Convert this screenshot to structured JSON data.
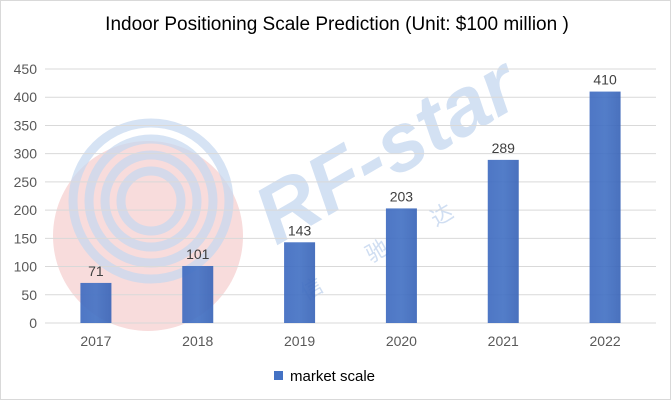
{
  "chart_data": {
    "type": "bar",
    "title": "Indoor Positioning Scale Prediction (Unit: $100 million )",
    "categories": [
      "2017",
      "2018",
      "2019",
      "2020",
      "2021",
      "2022"
    ],
    "series": [
      {
        "name": "market scale",
        "values": [
          71,
          101,
          143,
          203,
          289,
          410
        ]
      }
    ],
    "data_labels": [
      "71",
      "101",
      "143",
      "203",
      "289",
      "410"
    ],
    "y_ticks": [
      "0",
      "50",
      "100",
      "150",
      "200",
      "250",
      "300",
      "350",
      "400",
      "450"
    ],
    "ylim": [
      0,
      450
    ],
    "xlabel": "",
    "ylabel": "",
    "grid": true,
    "legend_position": "bottom"
  },
  "watermark": {
    "text": "RF-star",
    "cn_chars": [
      "信",
      "驰",
      "达"
    ]
  },
  "colors": {
    "bar": "#4472c4",
    "grid": "#d9d9d9",
    "watermark_blue": "#c5d7ef",
    "watermark_red": "#f6d0d0"
  }
}
